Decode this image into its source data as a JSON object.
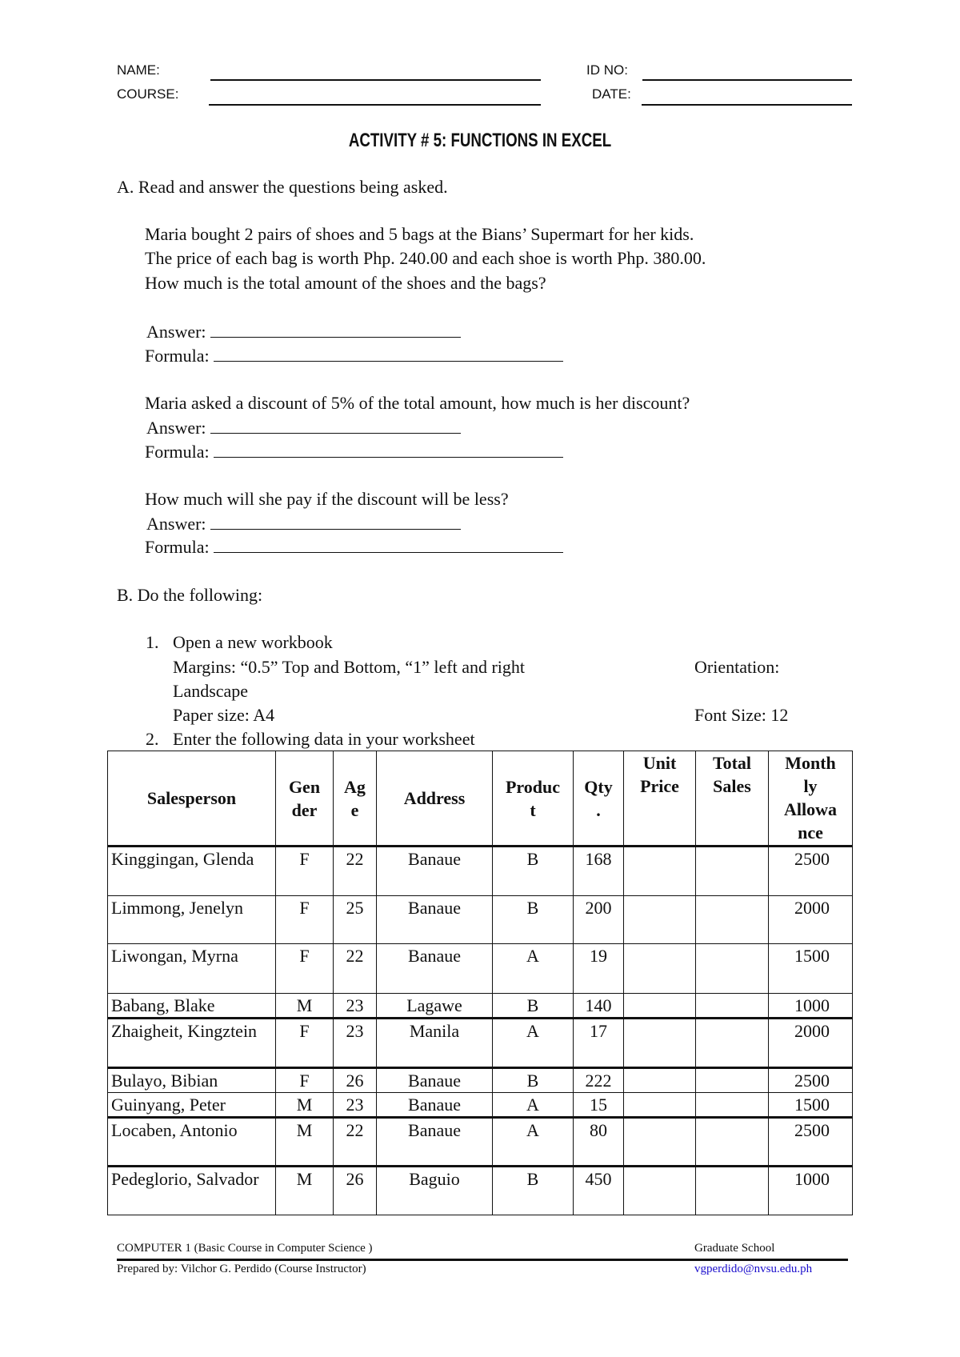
{
  "header": {
    "name_label": "NAME:",
    "id_label": "ID NO:",
    "course_label": "COURSE:",
    "date_label": "DATE:"
  },
  "title": "ACTIVITY # 5: FUNCTIONS IN EXCEL",
  "partA": {
    "heading": "A.  Read and answer the questions being asked.",
    "problem": [
      "Maria bought 2 pairs of shoes and 5 bags at the Bians’ Supermart for her kids.",
      "The price of each bag is worth Php. 240.00 and each shoe is worth Php. 380.00.",
      "How much is the total amount of the shoes and the bags?"
    ],
    "q2": "Maria asked a discount of 5% of the total amount, how much is her discount?",
    "q3": "How much will she pay if the discount will be less?",
    "answer_label": "Answer:",
    "formula_label": "Formula:"
  },
  "partB": {
    "heading": "B.  Do the following:",
    "item1_num": "1.",
    "item1": "Open a new workbook",
    "margins": "Margins: “0.5” Top and Bottom, “1” left and right",
    "orientation": "Orientation:",
    "landscape": "Landscape",
    "paper": "Paper size: A4",
    "font_size": "Font Size: 12",
    "item2_num": "2.",
    "item2": "Enter the following data in your worksheet"
  },
  "table": {
    "headers": [
      "Salesperson",
      "Gen\nder",
      "Ag\ne",
      "Address",
      "Produc\nt",
      "Qty\n.",
      "Unit\nPrice",
      "Total\nSales",
      "Month\nly\nAllowa\nnce"
    ],
    "rows": [
      [
        "Kinggingan, Glenda",
        "F",
        "22",
        "Banaue",
        "B",
        "168",
        "",
        "",
        "2500"
      ],
      [
        "Limmong, Jenelyn",
        "F",
        "25",
        "Banaue",
        "B",
        "200",
        "",
        "",
        "2000"
      ],
      [
        "Liwongan, Myrna",
        "F",
        "22",
        "Banaue",
        "A",
        "19",
        "",
        "",
        "1500"
      ],
      [
        "Babang, Blake",
        "M",
        "23",
        "Lagawe",
        "B",
        "140",
        "",
        "",
        "1000"
      ],
      [
        "Zhaigheit, Kingztein",
        "F",
        "23",
        "Manila",
        "A",
        "17",
        "",
        "",
        "2000"
      ],
      [
        "Bulayo, Bibian",
        "F",
        "26",
        "Banaue",
        "B",
        "222",
        "",
        "",
        "2500"
      ],
      [
        "Guinyang, Peter",
        "M",
        "23",
        "Banaue",
        "A",
        "15",
        "",
        "",
        "1500"
      ],
      [
        "Locaben, Antonio",
        "M",
        "22",
        "Banaue",
        "A",
        "80",
        "",
        "",
        "2500"
      ],
      [
        "Pedeglorio, Salvador",
        "M",
        "26",
        "Baguio",
        "B",
        "450",
        "",
        "",
        "1000"
      ]
    ]
  },
  "footer": {
    "course": "COMPUTER 1 (Basic Course in Computer Science )",
    "school": "Graduate School",
    "prepared": "Prepared by: Vilchor G. Perdido (Course Instructor)",
    "email": "vgperdido@nvsu.edu.ph",
    "link_color": "#1a0dcc"
  }
}
